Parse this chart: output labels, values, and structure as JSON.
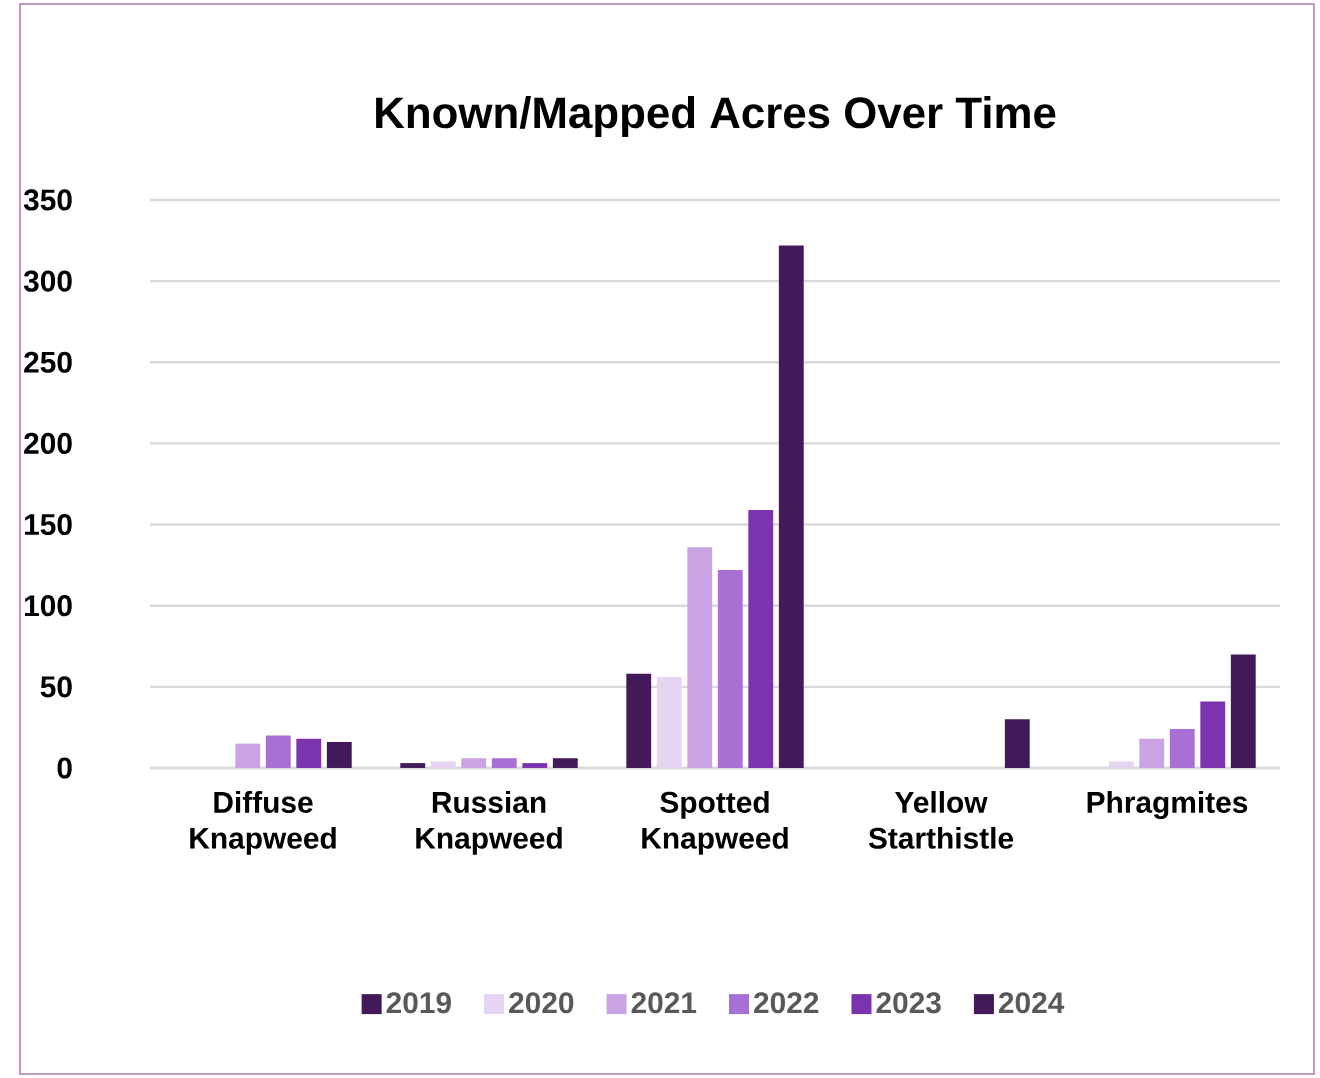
{
  "chart_data": {
    "type": "bar",
    "title": "Known/Mapped Acres Over Time",
    "categories": [
      "Diffuse Knapweed",
      "Russian Knapweed",
      "Spotted Knapweed",
      "Yellow Starthistle",
      "Phragmites"
    ],
    "series": [
      {
        "name": "2019",
        "color": "#421a5a",
        "values": [
          null,
          3,
          58,
          null,
          null
        ]
      },
      {
        "name": "2020",
        "color": "#e5d5f2",
        "values": [
          null,
          4,
          56,
          null,
          4
        ]
      },
      {
        "name": "2021",
        "color": "#c9a3e3",
        "values": [
          15,
          6,
          136,
          null,
          18
        ]
      },
      {
        "name": "2022",
        "color": "#a86fd4",
        "values": [
          20,
          6,
          122,
          null,
          24
        ]
      },
      {
        "name": "2023",
        "color": "#7b34ae",
        "values": [
          18,
          3,
          159,
          null,
          41
        ]
      },
      {
        "name": "2024",
        "color": "#421a5a",
        "values": [
          16,
          6,
          322,
          30,
          70
        ]
      }
    ],
    "ylim": [
      0,
      350
    ],
    "yticks": [
      0,
      50,
      100,
      150,
      200,
      250,
      300,
      350
    ],
    "grid": "y",
    "legend": "bottom"
  }
}
